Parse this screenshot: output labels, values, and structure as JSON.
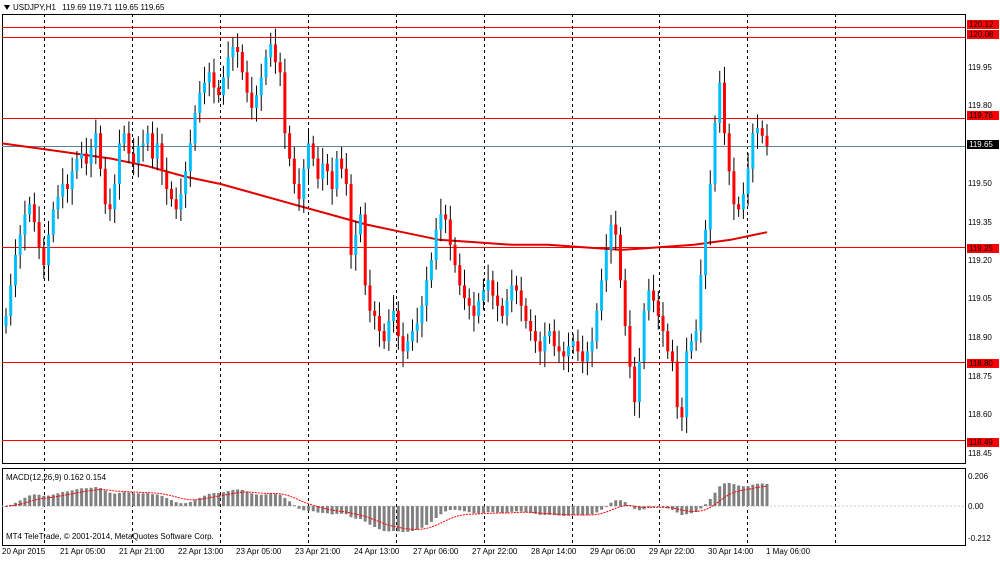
{
  "header": {
    "symbol": "USDJPY,H1",
    "ohlc": "119.69 119.71 119.65 119.65"
  },
  "price_axis": {
    "ticks": [
      "119.95",
      "119.80",
      "119.50",
      "119.35",
      "119.20",
      "119.05",
      "118.90",
      "118.75",
      "118.60",
      "118.45"
    ],
    "levels": [
      "120.12",
      "120.08",
      "119.76",
      "119.25",
      "118.80",
      "118.49"
    ],
    "current": "119.65"
  },
  "time_axis": {
    "labels": [
      "20 Apr 2015",
      "21 Apr 05:00",
      "21 Apr 21:00",
      "22 Apr 13:00",
      "23 Apr 05:00",
      "23 Apr 21:00",
      "24 Apr 13:00",
      "27 Apr 06:00",
      "27 Apr 22:00",
      "28 Apr 14:00",
      "29 Apr 06:00",
      "29 Apr 22:00",
      "30 Apr 14:00",
      "1 May 06:00"
    ]
  },
  "macd": {
    "title": "MACD(12,26,9) 0.162 0.154",
    "ticks": [
      "0.206",
      "0.00",
      "-0.212"
    ]
  },
  "footer": {
    "copyright": "MT4 TeleTrade, © 2001-2014, MetaQuotes Software Corp."
  },
  "colors": {
    "bull": "#00bfff",
    "bear": "#ff0000",
    "ma": "#e00000",
    "level": "#ff0000",
    "current_line": "#6080a0",
    "grid": "#000000"
  },
  "chart_data": {
    "type": "candlestick",
    "levels": [
      120.12,
      120.08,
      119.76,
      119.25,
      118.8,
      118.49
    ],
    "current_price": 119.65,
    "y_range": [
      118.4,
      120.17
    ],
    "macd_range": [
      -0.212,
      0.206
    ],
    "macd_main": 0.162,
    "macd_signal": 0.154,
    "candles_close": [
      118.98,
      119.1,
      119.22,
      119.3,
      119.38,
      119.42,
      119.35,
      119.25,
      119.18,
      119.3,
      119.4,
      119.45,
      119.5,
      119.48,
      119.55,
      119.6,
      119.62,
      119.58,
      119.64,
      119.7,
      119.56,
      119.42,
      119.4,
      119.5,
      119.66,
      119.7,
      119.62,
      119.58,
      119.65,
      119.66,
      119.7,
      119.6,
      119.66,
      119.55,
      119.48,
      119.44,
      119.4,
      119.46,
      119.55,
      119.66,
      119.78,
      119.86,
      119.9,
      119.94,
      119.88,
      119.85,
      119.92,
      120.0,
      120.04,
      120.02,
      119.94,
      119.86,
      119.8,
      119.85,
      119.92,
      120.0,
      120.05,
      119.98,
      119.94,
      119.7,
      119.6,
      119.5,
      119.44,
      119.56,
      119.66,
      119.6,
      119.52,
      119.58,
      119.55,
      119.48,
      119.6,
      119.56,
      119.5,
      119.22,
      119.3,
      119.38,
      119.1,
      119.0,
      118.98,
      118.92,
      118.88,
      118.96,
      119.0,
      118.9,
      118.84,
      118.88,
      118.92,
      118.95,
      119.02,
      119.12,
      119.2,
      119.32,
      119.38,
      119.36,
      119.26,
      119.18,
      119.1,
      119.05,
      119.02,
      118.98,
      119.04,
      119.08,
      119.12,
      119.06,
      119.02,
      118.98,
      119.04,
      119.1,
      119.08,
      119.02,
      118.96,
      118.92,
      118.88,
      118.84,
      118.9,
      118.92,
      118.86,
      118.84,
      118.82,
      118.86,
      118.88,
      118.84,
      118.8,
      118.84,
      118.88,
      119.0,
      119.12,
      119.24,
      119.34,
      119.3,
      119.12,
      118.94,
      118.78,
      118.64,
      118.8,
      119.0,
      119.08,
      119.04,
      118.98,
      118.92,
      118.84,
      118.8,
      118.62,
      118.58,
      118.84,
      118.88,
      118.92,
      119.14,
      119.32,
      119.5,
      119.74,
      119.9,
      119.7,
      119.55,
      119.42,
      119.4,
      119.46,
      119.56,
      119.7,
      119.72,
      119.69,
      119.65
    ],
    "ma_values": [
      119.66,
      119.64,
      119.62,
      119.6,
      119.57,
      119.53,
      119.5,
      119.46,
      119.42,
      119.38,
      119.34,
      119.31,
      119.28,
      119.27,
      119.26,
      119.26,
      119.25,
      119.24,
      119.25,
      119.26,
      119.28,
      119.31
    ]
  }
}
